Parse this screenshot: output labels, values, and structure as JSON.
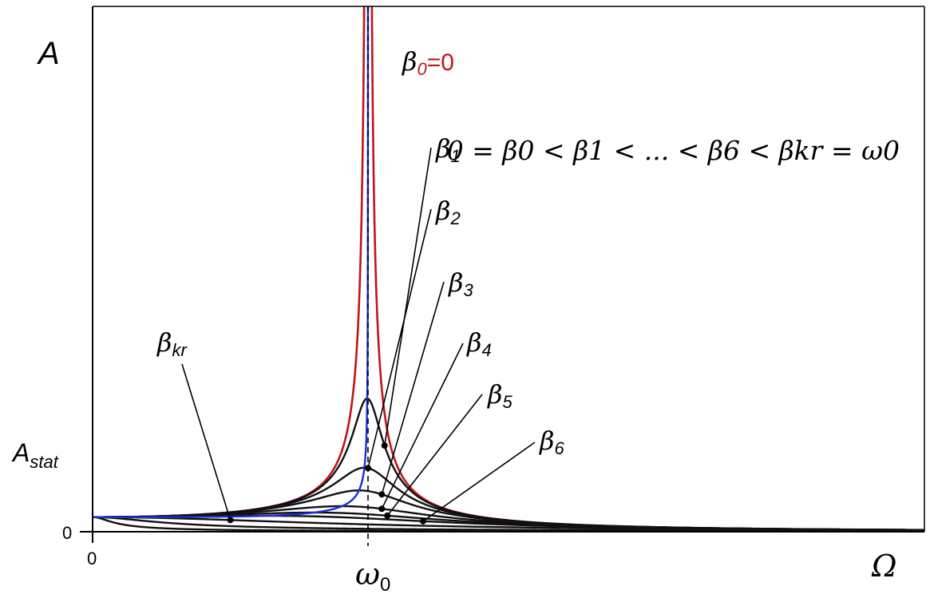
{
  "chart_data": {
    "type": "line",
    "title": "",
    "ylabel": "A",
    "xlabel": "Ω",
    "x_ticks": [
      "0",
      "ω0"
    ],
    "y_ticks": [
      "0",
      "Astat"
    ],
    "annotation": "0 = β0 < β1 < ... < β6 < βkr = ω0",
    "omega0": 1.0,
    "A_stat": 1.0,
    "xlim": [
      0,
      3.02
    ],
    "ylim": [
      0,
      6.0
    ],
    "series": [
      {
        "name": "β0=0",
        "beta": 0.0,
        "color": "#c0141c"
      },
      {
        "name": "β1",
        "beta": 0.055,
        "color": "#111111"
      },
      {
        "name": "β2",
        "beta": 0.115,
        "color": "#111111"
      },
      {
        "name": "β3",
        "beta": 0.18,
        "color": "#111111"
      },
      {
        "name": "β4",
        "beta": 0.3,
        "color": "#111111"
      },
      {
        "name": "β5",
        "beta": 0.42,
        "color": "#111111"
      },
      {
        "name": "β6",
        "beta": 0.55,
        "color": "#111111"
      },
      {
        "name": "βkr",
        "beta": 1.0,
        "color": "#111111"
      },
      {
        "name": "",
        "beta": 2.5,
        "color": "#111111"
      },
      {
        "name": "",
        "beta": 8.0,
        "color": "#111111"
      }
    ],
    "resonance_locus_color": "#1a2fd6",
    "labels": {
      "beta0": {
        "symbol": "β",
        "sub": "0",
        "suffix": "=0"
      },
      "beta1": {
        "symbol": "β",
        "sub": "1"
      },
      "beta2": {
        "symbol": "β",
        "sub": "2"
      },
      "beta3": {
        "symbol": "β",
        "sub": "3"
      },
      "beta4": {
        "symbol": "β",
        "sub": "4"
      },
      "beta5": {
        "symbol": "β",
        "sub": "5"
      },
      "beta6": {
        "symbol": "β",
        "sub": "6"
      },
      "betakr": {
        "symbol": "β",
        "sub": "kr"
      },
      "A": "A",
      "Astat": {
        "main": "A",
        "sub": "stat"
      },
      "zero_y": "0",
      "zero_x": "0",
      "omega0": {
        "symbol": "ω",
        "sub": "0"
      },
      "Omega": "Ω"
    }
  }
}
